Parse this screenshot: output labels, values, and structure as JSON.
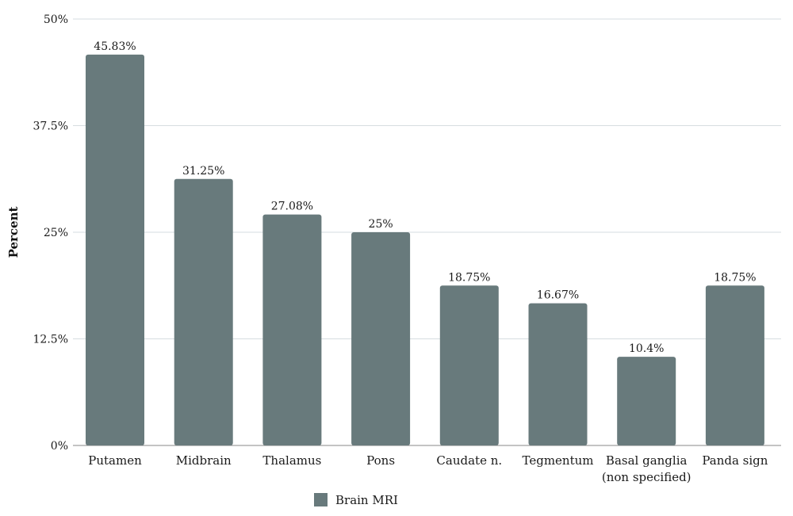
{
  "chart_data": {
    "type": "bar",
    "categories": [
      "Putamen",
      "Midbrain",
      "Thalamus",
      "Pons",
      "Caudate n.",
      "Tegmentum",
      "Basal ganglia\n(non specified)",
      "Panda sign"
    ],
    "series": [
      {
        "name": "Brain MRI",
        "values": [
          45.83,
          31.25,
          27.08,
          25,
          18.75,
          16.67,
          10.4,
          18.75
        ],
        "labels": [
          "45.83%",
          "31.25%",
          "27.08%",
          "25%",
          "18.75%",
          "16.67%",
          "10.4%",
          "18.75%"
        ],
        "color": "#687a7c"
      }
    ],
    "ylabel": "Percent",
    "xlabel": "",
    "ylim": [
      0,
      50
    ],
    "yticks": [
      0,
      12.5,
      25,
      37.5,
      50
    ],
    "ytick_labels": [
      "0%",
      "12.5%",
      "25%",
      "37.5%",
      "50%"
    ],
    "grid": true,
    "legend": "bottom-center"
  }
}
